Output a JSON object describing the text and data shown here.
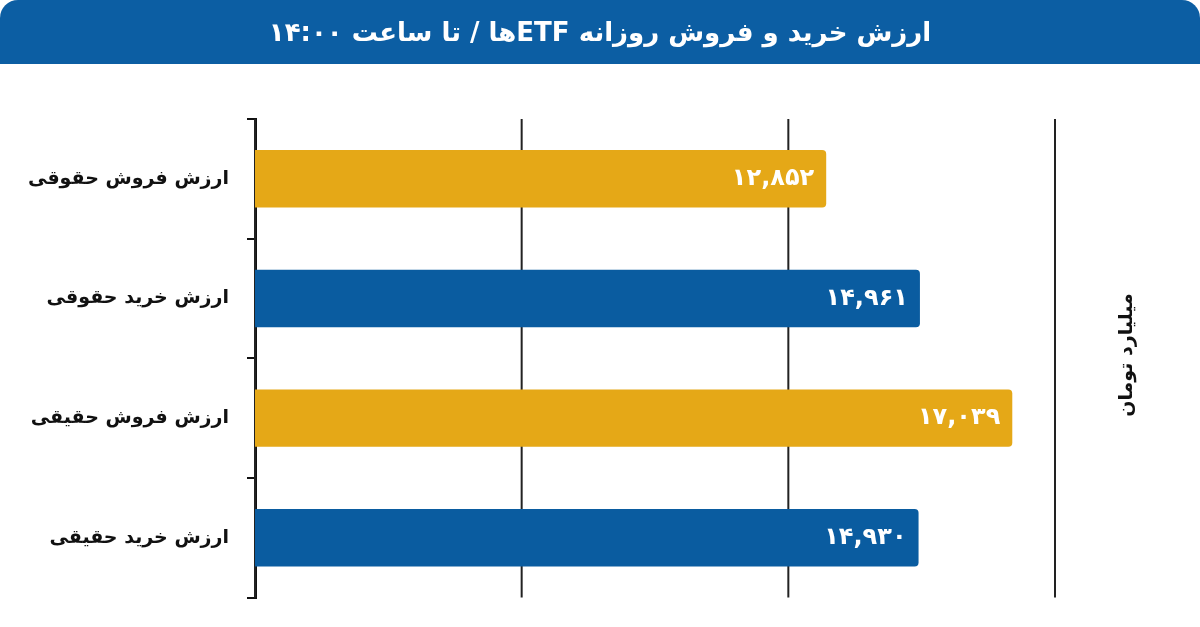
{
  "chart_data": {
    "type": "bar",
    "orientation": "horizontal",
    "title": "ارزش خرید و فروش روزانه ETFها / تا ساعت ۱۴:۰۰",
    "categories": [
      "ارزش فروش حقوقی",
      "ارزش خرید حقوقی",
      "ارزش فروش حقیقی",
      "ارزش خرید حقیقی"
    ],
    "values": [
      12852,
      14961,
      17039,
      14930
    ],
    "colors": [
      "#e5a817",
      "#0a5ca0",
      "#e5a817",
      "#0a5ca0"
    ],
    "value_labels": [
      "۱۲,۸۵۲",
      "۱۴,۹۶۱",
      "۱۷,۰۳۹",
      "۱۴,۹۳۰"
    ],
    "xlim": [
      0,
      18000
    ],
    "xticks": [
      0,
      6000,
      12000,
      18000
    ],
    "tick_labels": "y",
    "grid": "x",
    "legend": false,
    "annotations": [
      "میلیارد تومان"
    ]
  }
}
